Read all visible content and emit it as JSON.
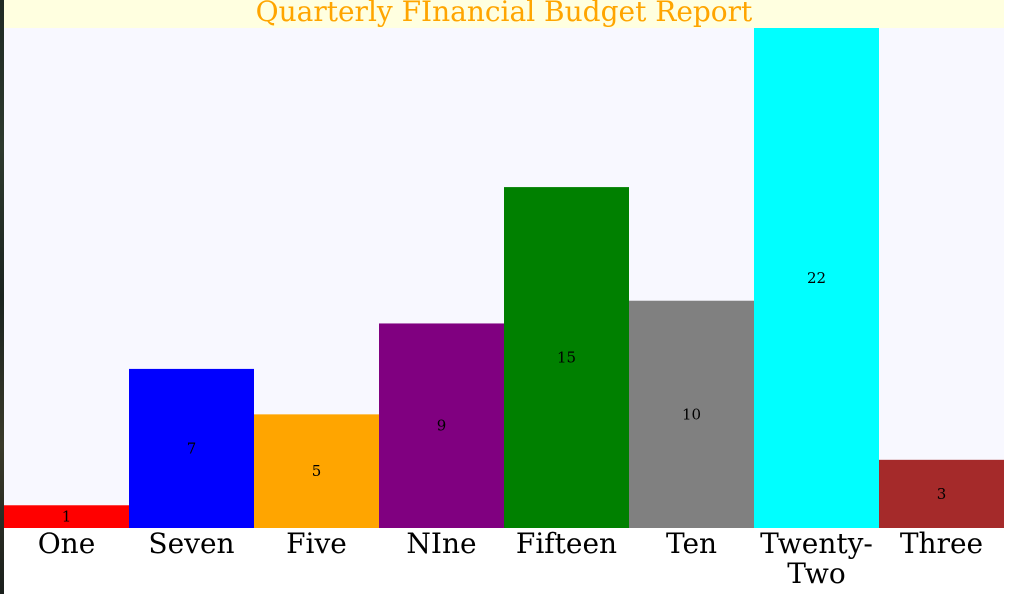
{
  "chart_data": {
    "type": "bar",
    "title": "Quarterly FInancial Budget Report",
    "categories": [
      "One",
      "Seven",
      "Five",
      "NIne",
      "Fifteen",
      "Ten",
      "Twenty-Two",
      "Three"
    ],
    "category_lines": [
      [
        "One"
      ],
      [
        "Seven"
      ],
      [
        "Five"
      ],
      [
        "NIne"
      ],
      [
        "Fifteen"
      ],
      [
        "Ten"
      ],
      [
        "Twenty-",
        "Two"
      ],
      [
        "Three"
      ]
    ],
    "values": [
      1,
      7,
      5,
      9,
      15,
      10,
      22,
      3
    ],
    "value_labels": [
      "1",
      "7",
      "5",
      "9",
      "15",
      "10",
      "22",
      "3"
    ],
    "colors": [
      "#ff0000",
      "#0000ff",
      "#ffa500",
      "#800080",
      "#008000",
      "#808080",
      "#00ffff",
      "#a52a2a"
    ],
    "ylim": [
      0,
      22
    ],
    "grid": false,
    "legend": "none",
    "title_color": "#ffa500",
    "title_background": "#ffffe0",
    "plot_background": "#f8f8ff"
  }
}
